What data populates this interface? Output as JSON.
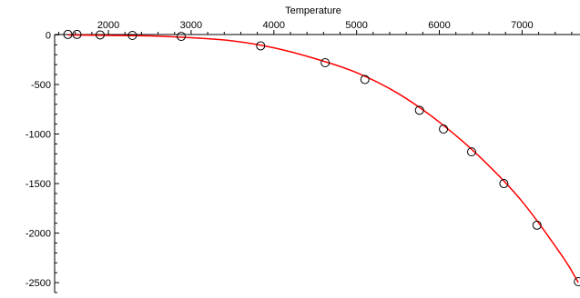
{
  "chart_data": {
    "type": "scatter",
    "title": "",
    "xlabel": "Temperature",
    "ylabel": "",
    "xlim": [
      1350,
      7700
    ],
    "ylim": [
      -2600,
      50
    ],
    "x_ticks": [
      2000,
      3000,
      4000,
      5000,
      6000,
      7000
    ],
    "y_ticks": [
      0,
      -500,
      -1000,
      -1500,
      -2000,
      -2500
    ],
    "x_tick_labels": [
      "2000",
      "3000",
      "4000",
      "5000",
      "6000",
      "7000"
    ],
    "y_tick_labels": [
      "0",
      "-500",
      "-1000",
      "-1500",
      "-2000",
      "-2500"
    ],
    "grid": false,
    "series": [
      {
        "kind": "points",
        "marker": "open-circle",
        "color": "#000000",
        "x": [
          1510,
          1620,
          1900,
          2290,
          2880,
          3840,
          4620,
          5100,
          5760,
          6050,
          6390,
          6780,
          7180,
          7680
        ],
        "y": [
          5,
          5,
          0,
          -5,
          -15,
          -110,
          -280,
          -450,
          -760,
          -950,
          -1180,
          -1500,
          -1920,
          -2490
        ]
      },
      {
        "kind": "fit-curve",
        "color": "#ff0000",
        "x": [
          1510,
          2000,
          2500,
          3000,
          3500,
          4000,
          4500,
          5000,
          5500,
          6000,
          6500,
          7000,
          7500,
          7680
        ],
        "y": [
          0,
          -5,
          -10,
          -28,
          -60,
          -130,
          -240,
          -380,
          -590,
          -880,
          -1240,
          -1680,
          -2250,
          -2500
        ]
      }
    ]
  }
}
